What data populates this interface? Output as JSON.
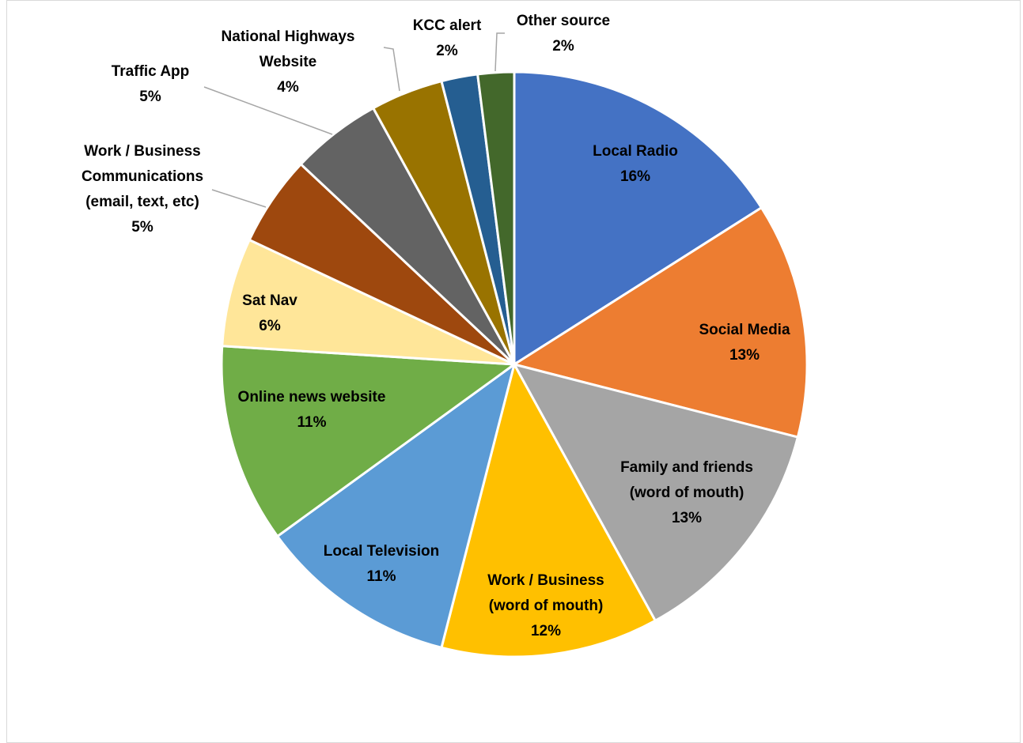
{
  "chart_data": {
    "type": "pie",
    "title": "",
    "slices": [
      {
        "label": "Local Radio",
        "lines": [
          "Local Radio"
        ],
        "value": 16,
        "display": "16%",
        "color": "#4472C4",
        "label_position": "inside"
      },
      {
        "label": "Social Media",
        "lines": [
          "Social Media"
        ],
        "value": 13,
        "display": "13%",
        "color": "#ED7D31",
        "label_position": "inside"
      },
      {
        "label": "Family and friends (word of mouth)",
        "lines": [
          "Family and friends",
          "(word of mouth)"
        ],
        "value": 13,
        "display": "13%",
        "color": "#A5A5A5",
        "label_position": "inside"
      },
      {
        "label": "Work / Business (word of mouth)",
        "lines": [
          "Work / Business",
          "(word of mouth)"
        ],
        "value": 12,
        "display": "12%",
        "color": "#FFC000",
        "label_position": "inside"
      },
      {
        "label": "Local Television",
        "lines": [
          "Local Television"
        ],
        "value": 11,
        "display": "11%",
        "color": "#5B9BD5",
        "label_position": "inside"
      },
      {
        "label": "Online news website",
        "lines": [
          "Online news website"
        ],
        "value": 11,
        "display": "11%",
        "color": "#70AD47",
        "label_position": "inside"
      },
      {
        "label": "Sat Nav",
        "lines": [
          "Sat Nav"
        ],
        "value": 6,
        "display": "6%",
        "color": "#FFE699",
        "label_position": "inside"
      },
      {
        "label": "Work / Business Communications (email, text, etc)",
        "lines": [
          "Work / Business",
          "Communications",
          "(email, text, etc)"
        ],
        "value": 5,
        "display": "5%",
        "color": "#9E480E",
        "label_position": "outside"
      },
      {
        "label": "Traffic App",
        "lines": [
          "Traffic App"
        ],
        "value": 5,
        "display": "5%",
        "color": "#636363",
        "label_position": "outside"
      },
      {
        "label": "National Highways Website",
        "lines": [
          "National Highways",
          "Website"
        ],
        "value": 4,
        "display": "4%",
        "color": "#997300",
        "label_position": "outside"
      },
      {
        "label": "KCC alert",
        "lines": [
          "KCC alert"
        ],
        "value": 2,
        "display": "2%",
        "color": "#255E91",
        "label_position": "outside"
      },
      {
        "label": "Other source",
        "lines": [
          "Other source"
        ],
        "value": 2,
        "display": "2%",
        "color": "#43682B",
        "label_position": "outside"
      }
    ],
    "legend": "none",
    "data_labels": "category and percentage"
  }
}
